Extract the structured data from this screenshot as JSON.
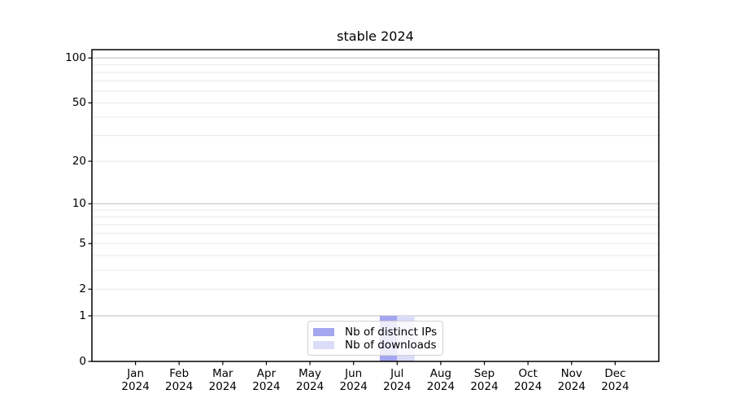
{
  "chart_data": {
    "type": "bar",
    "title": "stable 2024",
    "categories": [
      "Jan 2024",
      "Feb 2024",
      "Mar 2024",
      "Apr 2024",
      "May 2024",
      "Jun 2024",
      "Jul 2024",
      "Aug 2024",
      "Sep 2024",
      "Oct 2024",
      "Nov 2024",
      "Dec 2024"
    ],
    "series": [
      {
        "name": "Nb of distinct IPs",
        "color": "#a5a6f0",
        "values": [
          0,
          0,
          0,
          0,
          0,
          0,
          1,
          0,
          0,
          0,
          0,
          0
        ]
      },
      {
        "name": "Nb of downloads",
        "color": "#dbdcf8",
        "values": [
          0,
          0,
          0,
          0,
          0,
          0,
          1,
          0,
          0,
          0,
          0,
          0
        ]
      }
    ],
    "xlabel": "",
    "ylabel": "",
    "y_axis": {
      "scale": "log1p",
      "ticks": [
        0,
        1,
        2,
        5,
        10,
        20,
        50,
        100
      ],
      "range": [
        0,
        113
      ],
      "major_gridlines": [
        1,
        10,
        100
      ],
      "minor_gridlines": [
        2,
        3,
        4,
        5,
        6,
        7,
        8,
        9,
        20,
        30,
        40,
        50,
        60,
        70,
        80,
        90
      ]
    },
    "grid": true,
    "legend_position": "lower center",
    "colors": {
      "spine": "#000000",
      "major_grid": "#bababa",
      "minor_grid": "#e8e8e8",
      "background": "#ffffff"
    }
  }
}
